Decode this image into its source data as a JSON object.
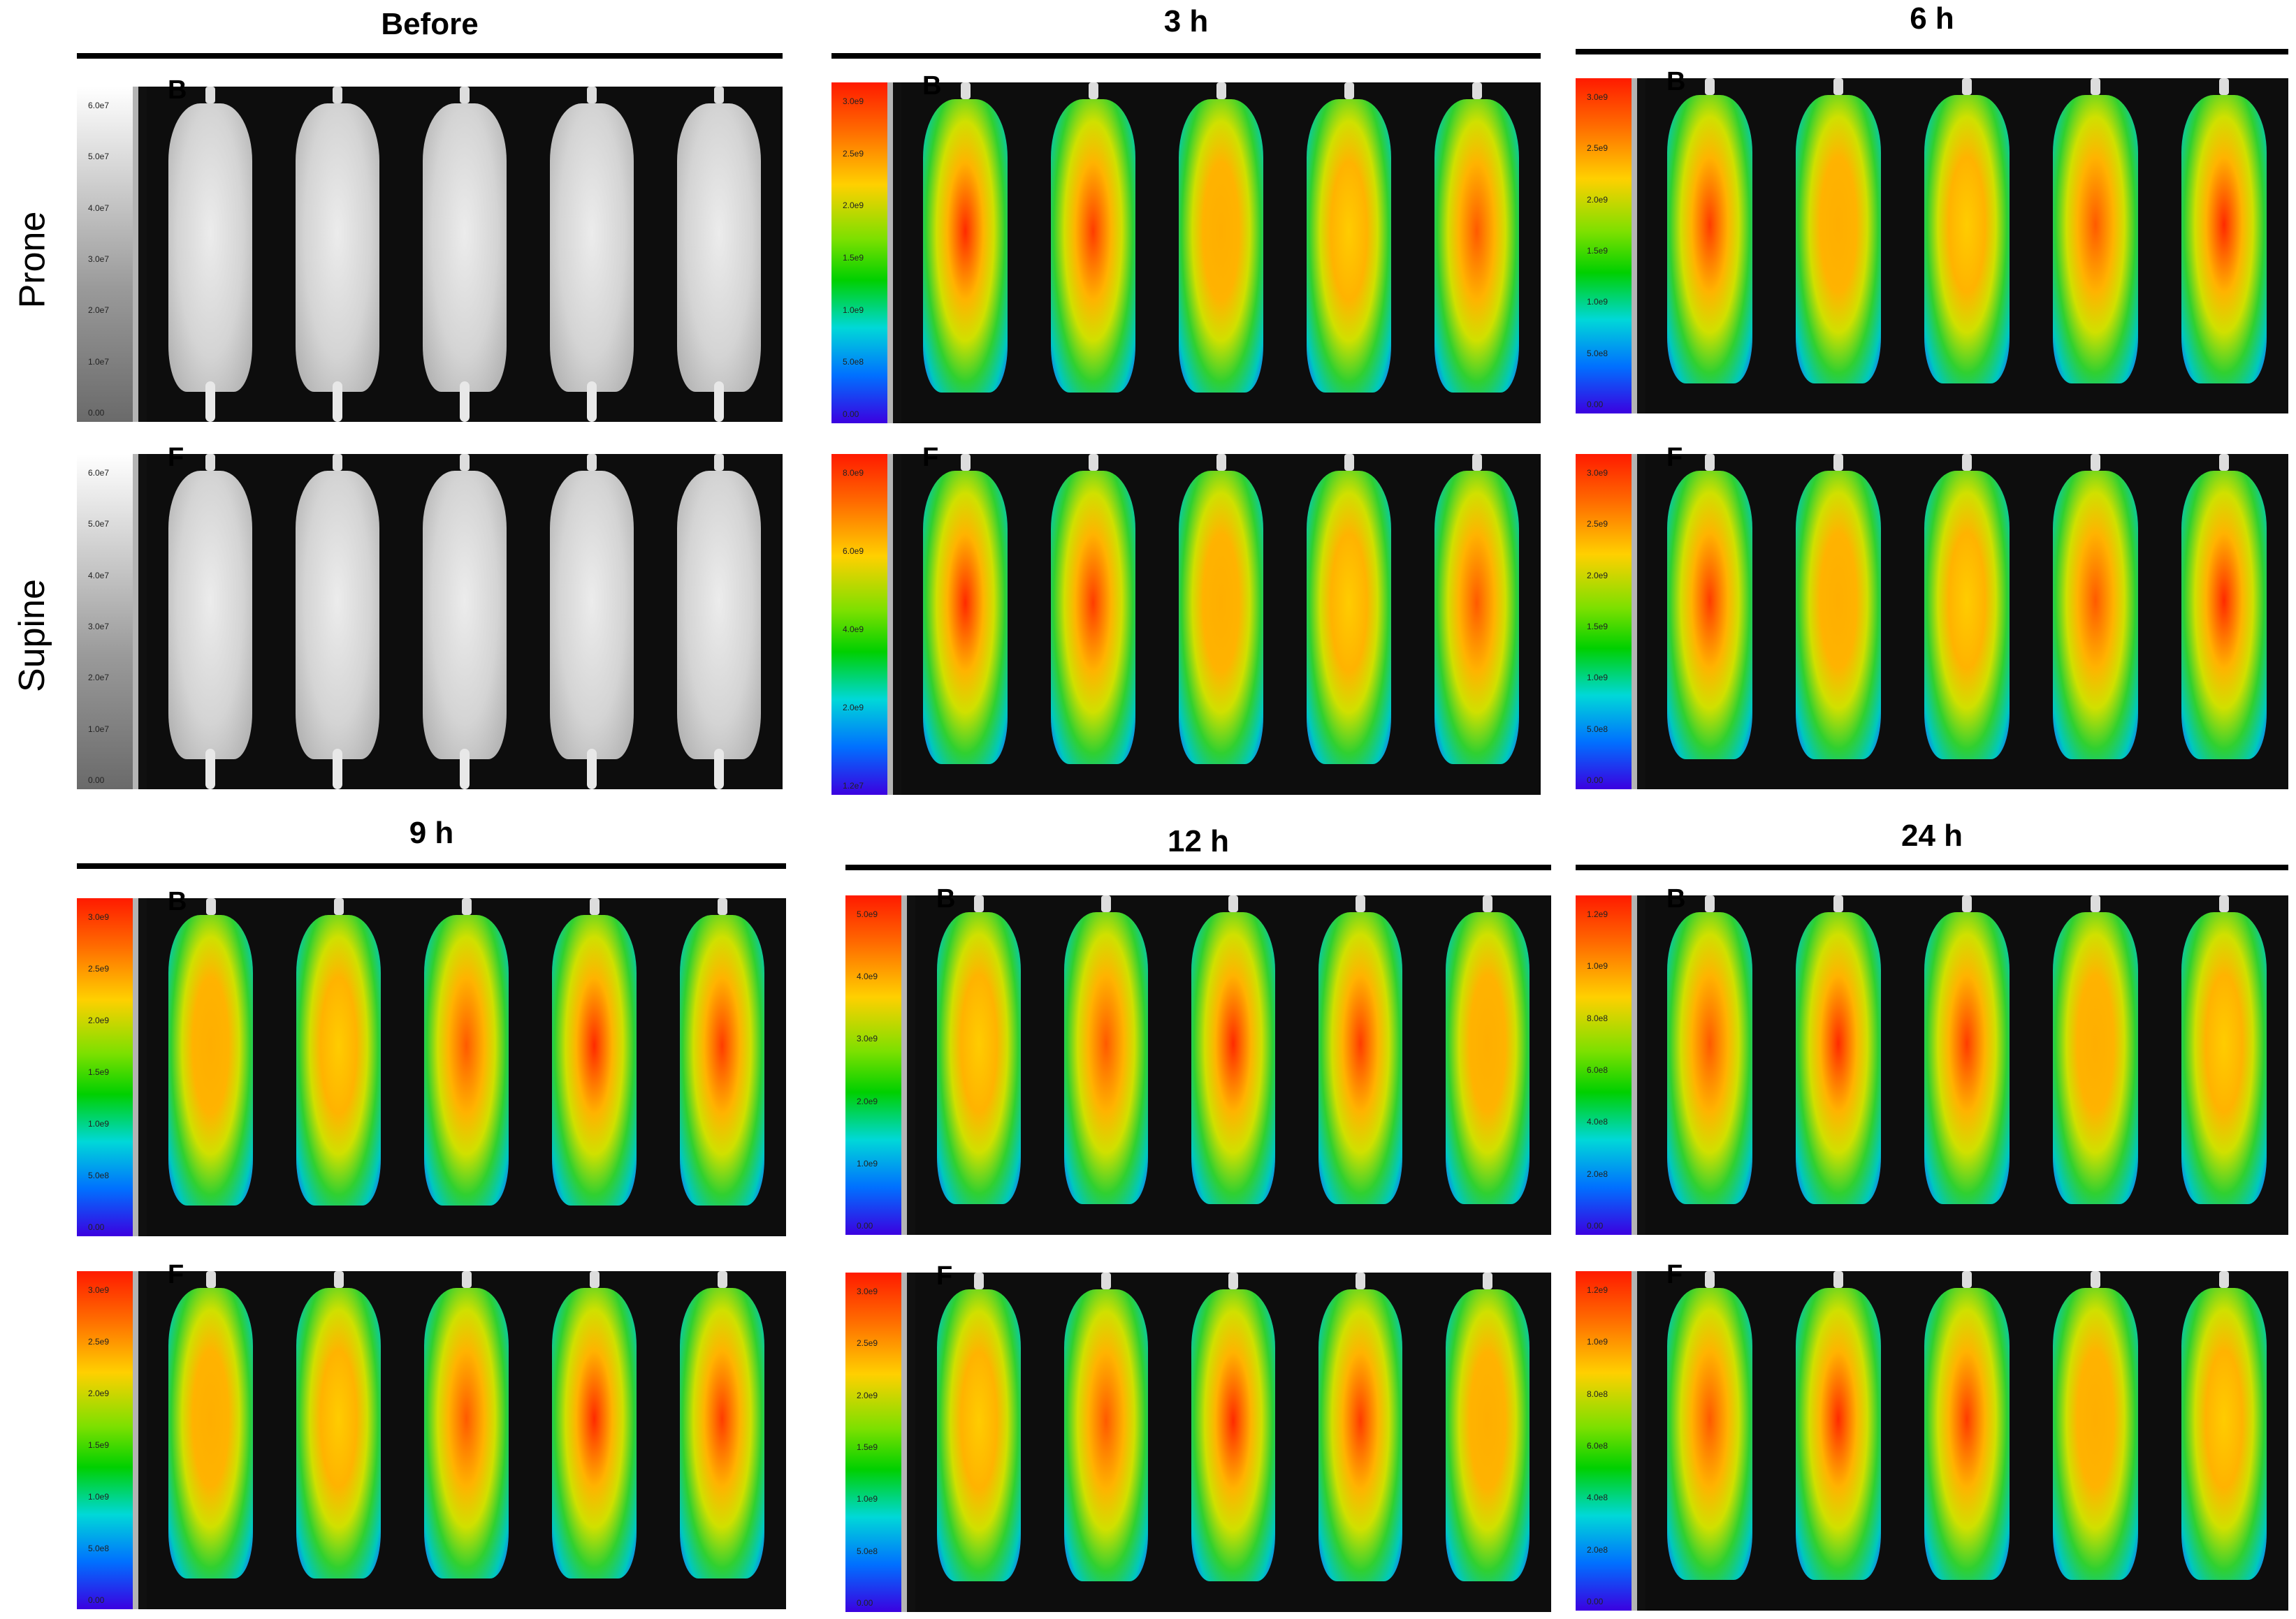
{
  "row_labels": {
    "prone": "Prone",
    "supine": "Supine"
  },
  "timepoints": [
    {
      "label": "Before",
      "prone_view": "B",
      "supine_view": "F",
      "mode": "gray",
      "prone_scale": [
        "6.0e7",
        "5.0e7",
        "4.0e7",
        "3.0e7",
        "2.0e7",
        "1.0e7",
        "0.00"
      ],
      "supine_scale": [
        "6.0e7",
        "5.0e7",
        "4.0e7",
        "3.0e7",
        "2.0e7",
        "1.0e7",
        "0.00"
      ]
    },
    {
      "label": "3 h",
      "prone_view": "B",
      "supine_view": "F",
      "mode": "color",
      "prone_scale": [
        "3.0e9",
        "2.5e9",
        "2.0e9",
        "1.5e9",
        "1.0e9",
        "5.0e8",
        "0.00"
      ],
      "supine_scale": [
        "8.0e9",
        "6.0e9",
        "4.0e9",
        "2.0e9",
        "1.2e7"
      ]
    },
    {
      "label": "6 h",
      "prone_view": "B",
      "supine_view": "F",
      "mode": "color",
      "prone_scale": [
        "3.0e9",
        "2.5e9",
        "2.0e9",
        "1.5e9",
        "1.0e9",
        "5.0e8",
        "0.00"
      ],
      "supine_scale": [
        "3.0e9",
        "2.5e9",
        "2.0e9",
        "1.5e9",
        "1.0e9",
        "5.0e8",
        "0.00"
      ]
    },
    {
      "label": "9 h",
      "prone_view": "B",
      "supine_view": "F",
      "mode": "color",
      "prone_scale": [
        "3.0e9",
        "2.5e9",
        "2.0e9",
        "1.5e9",
        "1.0e9",
        "5.0e8",
        "0.00"
      ],
      "supine_scale": [
        "3.0e9",
        "2.5e9",
        "2.0e9",
        "1.5e9",
        "1.0e9",
        "5.0e8",
        "0.00"
      ]
    },
    {
      "label": "12 h",
      "prone_view": "B",
      "supine_view": "F",
      "mode": "color",
      "prone_scale": [
        "5.0e9",
        "4.0e9",
        "3.0e9",
        "2.0e9",
        "1.0e9",
        "0.00"
      ],
      "supine_scale": [
        "3.0e9",
        "2.5e9",
        "2.0e9",
        "1.5e9",
        "1.0e9",
        "5.0e8",
        "0.00"
      ]
    },
    {
      "label": "24 h",
      "prone_view": "B",
      "supine_view": "F",
      "mode": "color",
      "prone_scale": [
        "1.2e9",
        "1.0e9",
        "8.0e8",
        "6.0e8",
        "4.0e8",
        "2.0e8",
        "0.00"
      ],
      "supine_scale": [
        "1.2e9",
        "1.0e9",
        "8.0e8",
        "6.0e8",
        "4.0e8",
        "2.0e8",
        "0.00"
      ]
    }
  ],
  "mice_per_panel": 5,
  "colors": {
    "low": "#1a4bff",
    "mid": "#20d020",
    "high": "#ff2a00",
    "background": "#101010",
    "gray_mouse": "#d9d9d9"
  }
}
